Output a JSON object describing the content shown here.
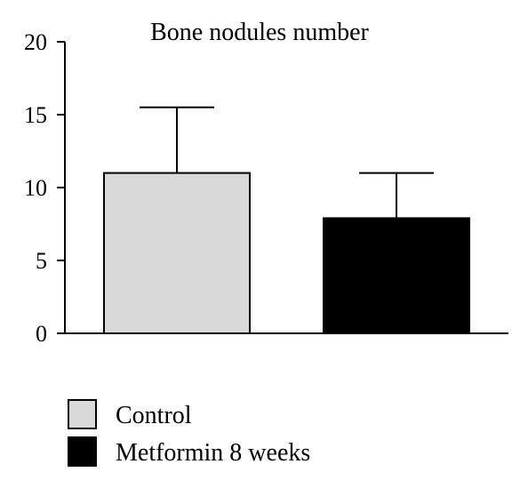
{
  "chart_data": {
    "type": "bar",
    "title": "Bone nodules number",
    "xlabel": "",
    "ylabel": "",
    "ylim": [
      0,
      20
    ],
    "yticks": [
      0,
      5,
      10,
      15,
      20
    ],
    "categories": [
      "Control",
      "Metformin 8 weeks"
    ],
    "values": [
      11,
      7.9
    ],
    "error_upper": [
      15.5,
      11
    ],
    "colors": [
      "#d9d9d9",
      "#000000"
    ],
    "legend": {
      "placement": "bottom-left",
      "entries": [
        {
          "label": "Control",
          "color": "#d9d9d9"
        },
        {
          "label": "Metformin 8 weeks",
          "color": "#000000"
        }
      ]
    },
    "grid": false
  }
}
